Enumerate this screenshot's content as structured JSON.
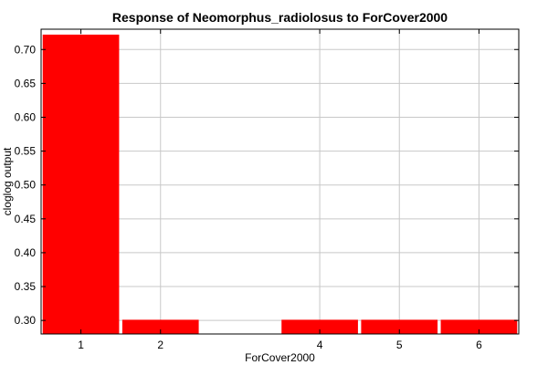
{
  "chart_data": {
    "type": "bar",
    "title": "Response of Neomorphus_radiolosus to ForCover2000",
    "xlabel": "ForCover2000",
    "ylabel": "cloglog output",
    "categories": [
      "1",
      "2",
      "4",
      "5",
      "6"
    ],
    "x": [
      1,
      2,
      4,
      5,
      6
    ],
    "values": [
      0.722,
      0.301,
      0.301,
      0.301,
      0.301
    ],
    "xlim": [
      0.5,
      6.5
    ],
    "ylim": [
      0.28,
      0.73
    ],
    "yticks": [
      "0.30",
      "0.35",
      "0.40",
      "0.45",
      "0.50",
      "0.55",
      "0.60",
      "0.65",
      "0.70"
    ],
    "grid": true,
    "legend": "none",
    "bar_color": "#ff0000"
  }
}
